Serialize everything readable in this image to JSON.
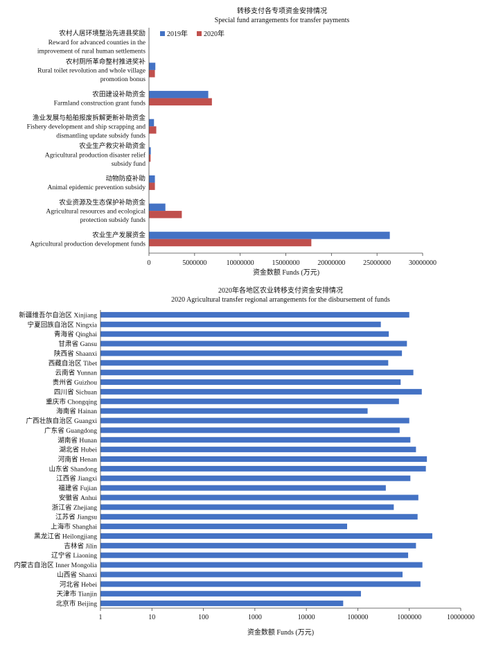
{
  "chart_data": [
    {
      "type": "bar",
      "orientation": "horizontal",
      "title": "转移支付各专项资金安排情况",
      "subtitle": "Special fund arrangements for transfer payments",
      "xlabel": "资金数额 Funds (万元)",
      "xlim": [
        0,
        30000000
      ],
      "xticks": [
        "0",
        "5000000",
        "10000000",
        "15000000",
        "20000000",
        "25000000",
        "30000000"
      ],
      "legend_position": "top-left",
      "categories": [
        [
          "农村人居环境整治先进县奖励",
          "Reward for advanced counties in the",
          "improvement of rural human settlements"
        ],
        [
          "农村厕所革命整村推进奖补",
          "Rural toilet revolution and whole village",
          "promotion bonus"
        ],
        [
          "农田建设补助资金",
          "Farmland construction grant funds"
        ],
        [
          "渔业发展与船舶报废拆解更新补助资金",
          "Fishery development and ship scrapping and",
          "dismantling update subsidy funds"
        ],
        [
          "农业生产救灾补助资金",
          "Agricultural production disaster relief",
          "subsidy fund"
        ],
        [
          "动物防疫补助",
          "Animal epidemic prevention subsidy"
        ],
        [
          "农业资源及生态保护补助资金",
          "Agricultural resources and ecological",
          "protection subsidy funds"
        ],
        [
          "农业生产发展资金",
          "Agricultural production development funds"
        ]
      ],
      "series": [
        {
          "name": "2019年",
          "color": "#4472c4",
          "values": [
            0,
            700000,
            6500000,
            550000,
            200000,
            650000,
            1800000,
            26400000
          ]
        },
        {
          "name": "2020年",
          "color": "#c0504d",
          "values": [
            0,
            650000,
            6900000,
            800000,
            180000,
            650000,
            3600000,
            17800000
          ]
        }
      ]
    },
    {
      "type": "bar",
      "orientation": "horizontal",
      "title": "2020年各地区农业转移支付资金安排情况",
      "subtitle": "2020 Agricultural transfer regional arrangements for the disbursement of funds",
      "xlabel": "资金数额 Funds (万元)",
      "xscale": "log",
      "xlim": [
        1,
        10000000
      ],
      "xticks": [
        "1",
        "10",
        "100",
        "1000",
        "10000",
        "100000",
        "1000000",
        "10000000"
      ],
      "color": "#4472c4",
      "categories": [
        "新疆维吾尔自治区 Xinjiang",
        "宁夏回族自治区 Ningxia",
        "青海省 Qinghai",
        "甘肃省 Gansu",
        "陕西省 Shaanxi",
        "西藏自治区 Tibet",
        "云南省 Yunnan",
        "贵州省 Guizhou",
        "四川省 Sichuan",
        "重庆市 Chongqing",
        "海南省 Hainan",
        "广西壮族自治区 Guangxi",
        "广东省 Guangdong",
        "湖南省 Hunan",
        "湖北省 Hubei",
        "河南省 Henan",
        "山东省 Shandong",
        "江西省 Jiangxi",
        "福建省 Fujian",
        "安徽省 Anhui",
        "浙江省 Zhejiang",
        "江苏省 Jiangsu",
        "上海市 Shanghai",
        "黑龙江省 Heilongjiang",
        "吉林省 Jilin",
        "辽宁省 Liaoning",
        "内蒙古自治区 Inner Mongolia",
        "山西省 Shanxi",
        "河北省 Hebei",
        "天津市 Tianjin",
        "北京市 Beijing"
      ],
      "values": [
        1000000,
        280000,
        400000,
        900000,
        720000,
        390000,
        1200000,
        680000,
        1750000,
        630000,
        155000,
        1000000,
        650000,
        1050000,
        1350000,
        2200000,
        2100000,
        1050000,
        350000,
        1500000,
        500000,
        1450000,
        62000,
        2800000,
        1350000,
        950000,
        1800000,
        740000,
        1650000,
        115000,
        52000
      ]
    }
  ]
}
